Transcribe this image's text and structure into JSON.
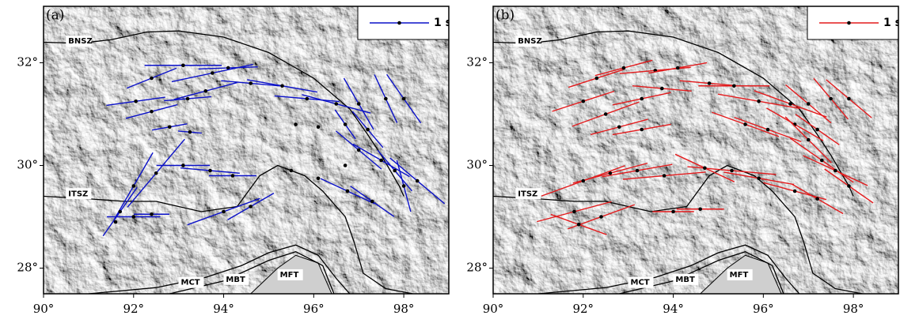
{
  "xlim": [
    90,
    99
  ],
  "ylim": [
    27.5,
    33.1
  ],
  "xticks": [
    {
      "value": 90,
      "label": "90°"
    },
    {
      "value": 92,
      "label": "92°"
    },
    {
      "value": 94,
      "label": "94°"
    },
    {
      "value": 96,
      "label": "96°"
    },
    {
      "value": 98,
      "label": "98°"
    }
  ],
  "yticks": [
    {
      "value": 28,
      "label": "28°"
    },
    {
      "value": 30,
      "label": "30°"
    },
    {
      "value": 32,
      "label": "32°"
    }
  ],
  "faults": [
    "BNSZ",
    "ITSZ",
    "MCT",
    "MBT",
    "MFT"
  ],
  "panels": [
    {
      "label": "(a)",
      "color": "#0a10c8",
      "legend": {
        "label": "1 s",
        "value": 1
      },
      "stations": [
        [
          93.1,
          31.95,
          90,
          1.3
        ],
        [
          94.1,
          31.9,
          88,
          1.0
        ],
        [
          92.4,
          31.7,
          68,
          0.9
        ],
        [
          93.75,
          31.8,
          78,
          1.4
        ],
        [
          94.6,
          31.6,
          95,
          1.0
        ],
        [
          95.3,
          31.55,
          100,
          1.2
        ],
        [
          92.05,
          31.25,
          82,
          1.0
        ],
        [
          93.2,
          31.3,
          85,
          0.8
        ],
        [
          93.6,
          31.45,
          75,
          1.1
        ],
        [
          95.85,
          31.3,
          95,
          1.1
        ],
        [
          96.5,
          31.2,
          105,
          1.2
        ],
        [
          97.0,
          31.2,
          150,
          1.0
        ],
        [
          97.6,
          31.3,
          155,
          0.9
        ],
        [
          98.0,
          31.3,
          145,
          1.0
        ],
        [
          92.4,
          31.05,
          75,
          0.9
        ],
        [
          92.8,
          30.75,
          80,
          0.6
        ],
        [
          93.25,
          30.65,
          95,
          0.4
        ],
        [
          95.6,
          30.8,
          null,
          null
        ],
        [
          96.1,
          30.75,
          null,
          null
        ],
        [
          96.7,
          30.8,
          145,
          0.6
        ],
        [
          97.2,
          30.7,
          140,
          0.8
        ],
        [
          97.0,
          30.3,
          130,
          1.0
        ],
        [
          97.5,
          30.1,
          120,
          1.1
        ],
        [
          97.8,
          29.9,
          140,
          0.9
        ],
        [
          98.0,
          29.6,
          165,
          0.9
        ],
        [
          98.3,
          29.7,
          130,
          1.2
        ],
        [
          96.7,
          30.0,
          null,
          null
        ],
        [
          96.75,
          29.5,
          115,
          1.0
        ],
        [
          97.3,
          29.3,
          125,
          0.9
        ],
        [
          92.0,
          29.6,
          30,
          1.3
        ],
        [
          91.7,
          29.1,
          35,
          1.0
        ],
        [
          92.5,
          29.85,
          40,
          1.5
        ],
        [
          93.1,
          30.0,
          90,
          0.9
        ],
        [
          93.7,
          29.9,
          95,
          1.0
        ],
        [
          94.2,
          29.8,
          90,
          0.8
        ],
        [
          95.5,
          29.9,
          null,
          null
        ],
        [
          96.1,
          29.75,
          null,
          null
        ],
        [
          94.0,
          29.1,
          70,
          1.3
        ],
        [
          94.6,
          29.2,
          60,
          0.9
        ],
        [
          92.0,
          29.0,
          90,
          0.9
        ],
        [
          92.4,
          29.05,
          90,
          0.6
        ],
        [
          91.6,
          28.9,
          null,
          null
        ]
      ]
    },
    {
      "label": "(b)",
      "color": "#e31a1c",
      "legend": {
        "label": "1 s",
        "value": 1
      },
      "stations": [
        [
          92.3,
          31.7,
          72,
          1.0
        ],
        [
          92.9,
          31.9,
          75,
          1.0
        ],
        [
          93.6,
          31.85,
          85,
          1.2
        ],
        [
          94.1,
          31.9,
          80,
          1.0
        ],
        [
          94.8,
          31.6,
          95,
          1.0
        ],
        [
          95.35,
          31.55,
          90,
          1.2
        ],
        [
          92.0,
          31.25,
          72,
          1.1
        ],
        [
          93.3,
          31.3,
          78,
          1.0
        ],
        [
          93.75,
          31.5,
          95,
          1.0
        ],
        [
          95.9,
          31.25,
          100,
          1.4
        ],
        [
          96.6,
          31.2,
          110,
          1.3
        ],
        [
          97.0,
          31.2,
          130,
          1.0
        ],
        [
          97.5,
          31.3,
          140,
          0.9
        ],
        [
          97.9,
          31.3,
          130,
          1.0
        ],
        [
          92.5,
          31.0,
          70,
          1.2
        ],
        [
          92.8,
          30.75,
          75,
          1.0
        ],
        [
          93.3,
          30.7,
          80,
          1.0
        ],
        [
          95.6,
          30.8,
          110,
          1.2
        ],
        [
          96.1,
          30.7,
          110,
          1.2
        ],
        [
          96.7,
          30.8,
          120,
          1.1
        ],
        [
          97.2,
          30.7,
          125,
          0.9
        ],
        [
          97.0,
          30.5,
          135,
          1.1
        ],
        [
          97.3,
          30.1,
          125,
          1.3
        ],
        [
          97.6,
          29.9,
          115,
          1.2
        ],
        [
          97.9,
          29.6,
          125,
          1.0
        ],
        [
          96.7,
          29.5,
          105,
          1.1
        ],
        [
          97.2,
          29.35,
          120,
          1.0
        ],
        [
          95.9,
          29.75,
          100,
          1.2
        ],
        [
          95.3,
          29.9,
          95,
          1.5
        ],
        [
          94.7,
          29.95,
          115,
          1.1
        ],
        [
          93.8,
          29.8,
          85,
          1.4
        ],
        [
          93.2,
          29.9,
          80,
          1.2
        ],
        [
          92.6,
          29.85,
          75,
          1.3
        ],
        [
          92.0,
          29.7,
          70,
          1.5
        ],
        [
          91.8,
          29.1,
          75,
          1.3
        ],
        [
          92.4,
          29.0,
          70,
          1.2
        ],
        [
          91.9,
          28.85,
          110,
          1.0
        ],
        [
          94.6,
          29.15,
          90,
          0.8
        ],
        [
          94.0,
          29.1,
          90,
          0.7
        ]
      ]
    }
  ]
}
